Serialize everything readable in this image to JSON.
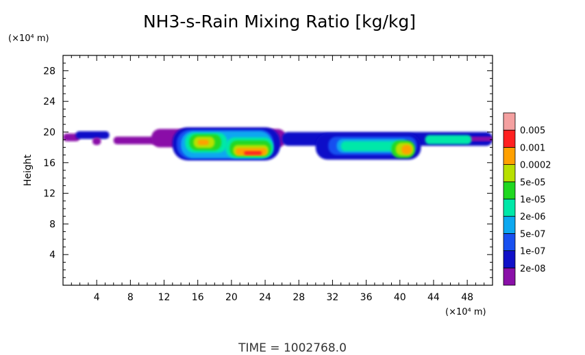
{
  "chart_data": {
    "type": "heatmap",
    "title": "NH3-s-Rain Mixing Ratio [kg/kg]",
    "ylabel": "Height",
    "y_unit": "(×10⁴ m)",
    "x_unit": "(×10⁴ m)",
    "xlim": [
      0,
      51
    ],
    "ylim": [
      0,
      30
    ],
    "x_ticks": [
      4,
      8,
      12,
      16,
      20,
      24,
      28,
      32,
      36,
      40,
      44,
      48
    ],
    "y_ticks": [
      4,
      8,
      12,
      16,
      20,
      24,
      28
    ],
    "colorbar": {
      "levels": [
        "2e-08",
        "1e-07",
        "5e-07",
        "2e-06",
        "1e-05",
        "5e-05",
        "0.0002",
        "0.001",
        "0.005"
      ],
      "colors": [
        "#8a10a8",
        "#1010c8",
        "#1850f0",
        "#0ca8f0",
        "#00e8a8",
        "#20d820",
        "#b8e000",
        "#ffa000",
        "#ff2020",
        "#f4a0a0"
      ]
    },
    "regions": [
      {
        "level": 0,
        "x": [
          0.0,
          2.0
        ],
        "y": [
          18.8,
          19.8
        ]
      },
      {
        "level": 1,
        "x": [
          1.5,
          5.5
        ],
        "y": [
          19.1,
          20.1
        ]
      },
      {
        "level": 0,
        "x": [
          3.5,
          4.5
        ],
        "y": [
          18.3,
          19.3
        ]
      },
      {
        "level": 0,
        "x": [
          6.0,
          11.8
        ],
        "y": [
          18.4,
          19.4
        ]
      },
      {
        "level": 0,
        "x": [
          10.5,
          26.5
        ],
        "y": [
          18.0,
          20.4
        ]
      },
      {
        "level": 1,
        "x": [
          13.0,
          25.8
        ],
        "y": [
          16.3,
          20.6
        ]
      },
      {
        "level": 2,
        "x": [
          13.5,
          25.0
        ],
        "y": [
          16.5,
          20.3
        ]
      },
      {
        "level": 3,
        "x": [
          14.0,
          24.8
        ],
        "y": [
          16.6,
          20.1
        ]
      },
      {
        "level": 4,
        "x": [
          14.5,
          19.5
        ],
        "y": [
          17.3,
          19.9
        ]
      },
      {
        "level": 5,
        "x": [
          15.0,
          18.8
        ],
        "y": [
          17.6,
          19.7
        ]
      },
      {
        "level": 6,
        "x": [
          15.5,
          18.0
        ],
        "y": [
          17.9,
          19.4
        ]
      },
      {
        "level": 7,
        "x": [
          16.0,
          17.3
        ],
        "y": [
          18.3,
          19.0
        ]
      },
      {
        "level": 4,
        "x": [
          19.3,
          25.0
        ],
        "y": [
          16.6,
          19.3
        ]
      },
      {
        "level": 5,
        "x": [
          19.8,
          24.7
        ],
        "y": [
          16.8,
          18.9
        ]
      },
      {
        "level": 6,
        "x": [
          20.2,
          24.4
        ],
        "y": [
          16.9,
          18.3
        ]
      },
      {
        "level": 7,
        "x": [
          20.5,
          24.2
        ],
        "y": [
          17.0,
          17.9
        ]
      },
      {
        "level": 8,
        "x": [
          21.5,
          23.6
        ],
        "y": [
          17.0,
          17.5
        ]
      },
      {
        "level": 1,
        "x": [
          26.0,
          51.0
        ],
        "y": [
          18.2,
          20.0
        ]
      },
      {
        "level": 0,
        "x": [
          48.0,
          51.0
        ],
        "y": [
          18.8,
          19.4
        ]
      },
      {
        "level": 1,
        "x": [
          30.0,
          42.5
        ],
        "y": [
          16.4,
          19.8
        ]
      },
      {
        "level": 2,
        "x": [
          31.5,
          42.0
        ],
        "y": [
          17.0,
          19.4
        ]
      },
      {
        "level": 3,
        "x": [
          32.5,
          41.0
        ],
        "y": [
          17.3,
          19.1
        ]
      },
      {
        "level": 4,
        "x": [
          33.0,
          40.0
        ],
        "y": [
          17.5,
          18.8
        ]
      },
      {
        "level": 5,
        "x": [
          39.0,
          41.8
        ],
        "y": [
          16.6,
          18.9
        ]
      },
      {
        "level": 6,
        "x": [
          39.5,
          41.6
        ],
        "y": [
          16.9,
          18.6
        ]
      },
      {
        "level": 7,
        "x": [
          40.2,
          41.4
        ],
        "y": [
          17.1,
          18.3
        ]
      },
      {
        "level": 4,
        "x": [
          43.0,
          48.5
        ],
        "y": [
          18.4,
          19.6
        ]
      }
    ]
  },
  "footer": {
    "time_text": "TIME = 1002768.0"
  }
}
